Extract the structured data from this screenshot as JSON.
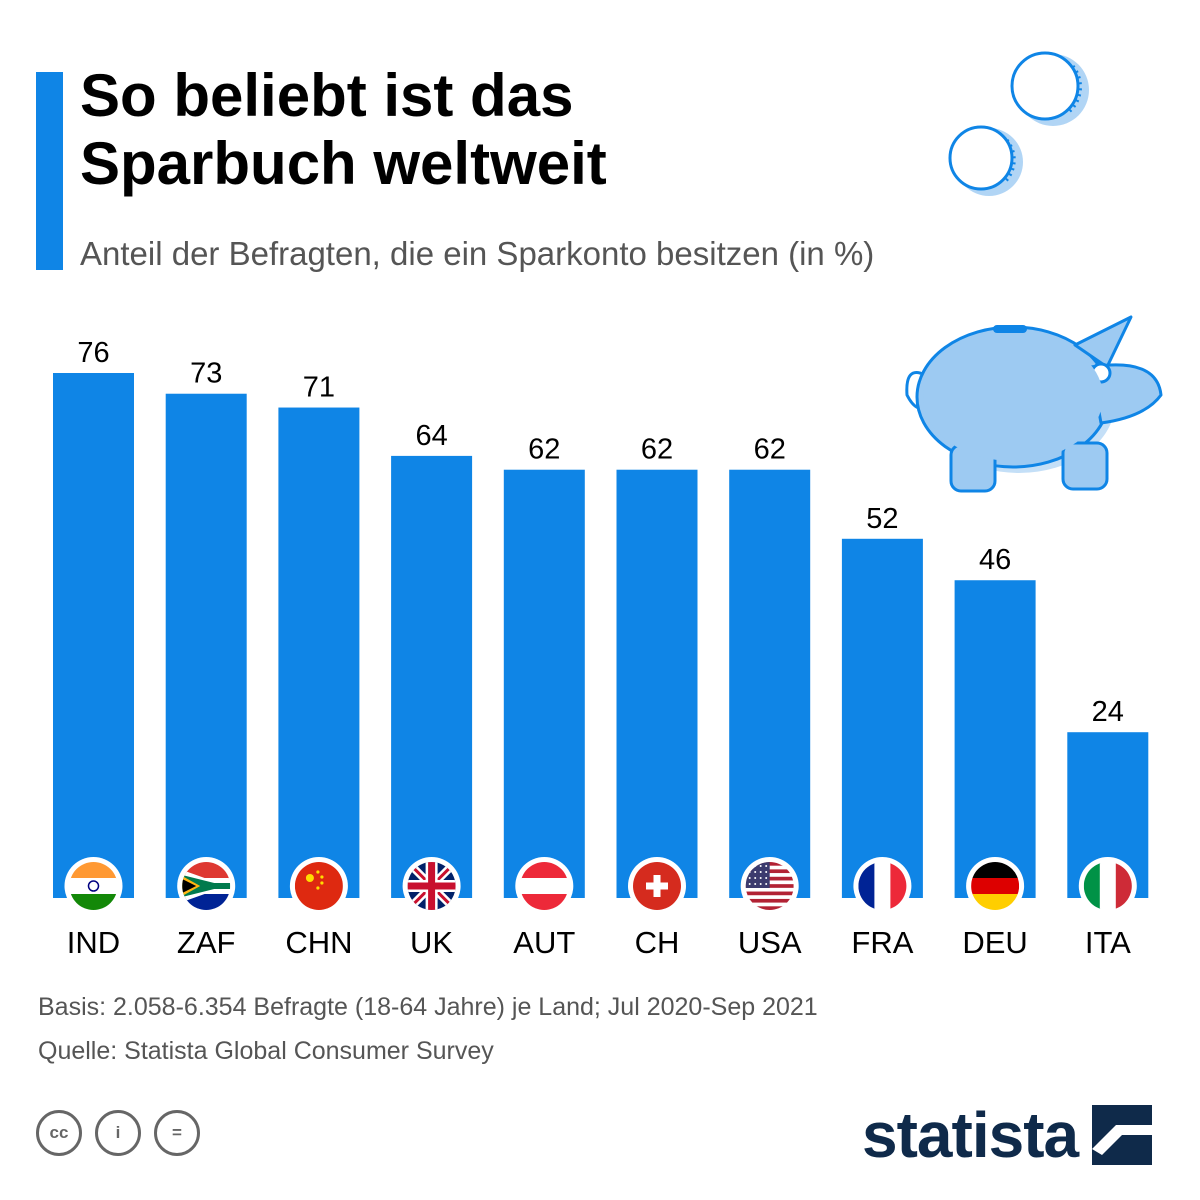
{
  "header": {
    "title": "So beliebt ist das Sparbuch weltweit",
    "subtitle": "Anteil der Befragten, die ein Sparkonto besitzen (in %)"
  },
  "colors": {
    "accent": "#0f85e6",
    "bar": "#0f85e6",
    "text": "#000000",
    "muted": "#555555",
    "logo": "#0f2a4a",
    "decoration": "#9dcaf2"
  },
  "chart_data": {
    "type": "bar",
    "title": "So beliebt ist das Sparbuch weltweit",
    "subtitle": "Anteil der Befragten, die ein Sparkonto besitzen (in %)",
    "categories": [
      "IND",
      "ZAF",
      "CHN",
      "UK",
      "AUT",
      "CH",
      "USA",
      "FRA",
      "DEU",
      "ITA"
    ],
    "values": [
      76,
      73,
      71,
      64,
      62,
      62,
      62,
      52,
      46,
      24
    ],
    "flag_icons": [
      "india-flag-icon",
      "south-africa-flag-icon",
      "china-flag-icon",
      "uk-flag-icon",
      "austria-flag-icon",
      "switzerland-flag-icon",
      "usa-flag-icon",
      "france-flag-icon",
      "germany-flag-icon",
      "italy-flag-icon"
    ],
    "ylim": [
      0,
      76
    ],
    "grid": false,
    "legend": "none",
    "data_labels": true
  },
  "footer": {
    "basis": "Basis: 2.058-6.354 Befragte (18-64 Jahre) je Land; Jul 2020-Sep 2021",
    "source": "Quelle: Statista Global Consumer Survey",
    "license_icons": [
      "cc-icon",
      "by-icon",
      "nd-icon"
    ],
    "license_labels": [
      "cc",
      "i",
      "="
    ],
    "brand": "statista"
  }
}
